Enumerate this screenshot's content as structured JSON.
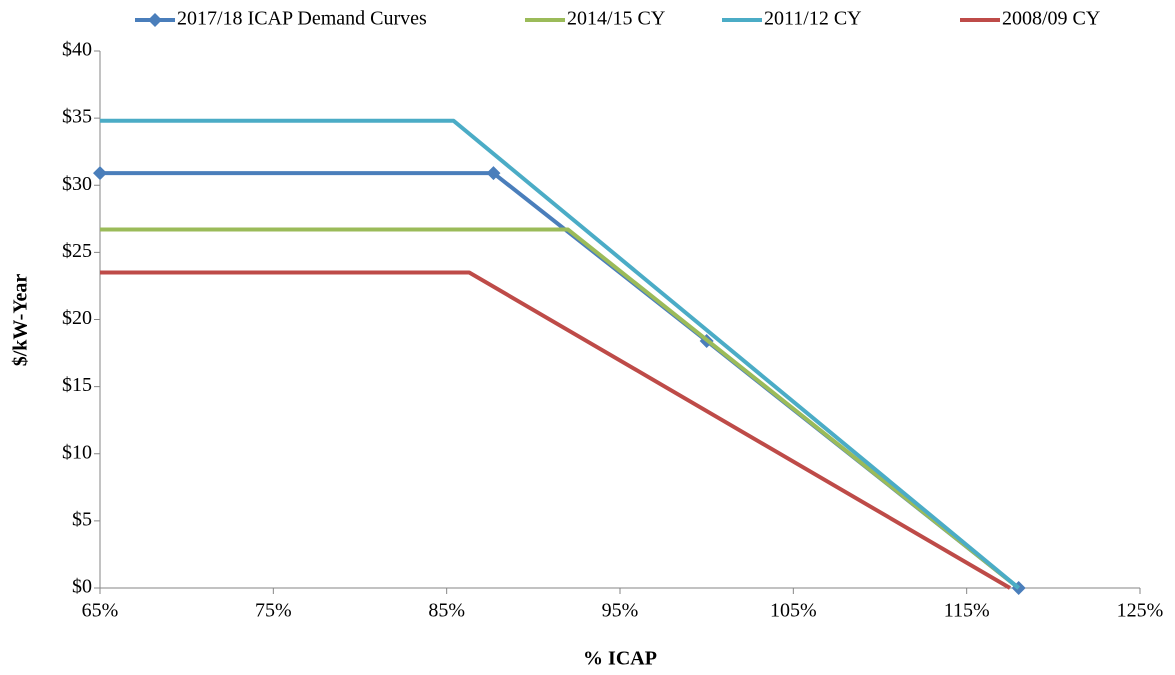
{
  "chart_data": {
    "type": "line",
    "x_label": "% ICAP",
    "y_label": "$/kW-Year",
    "xlim": [
      65,
      125
    ],
    "xticks": [
      {
        "value": 65,
        "label": "65%"
      },
      {
        "value": 75,
        "label": "75%"
      },
      {
        "value": 85,
        "label": "85%"
      },
      {
        "value": 95,
        "label": "95%"
      },
      {
        "value": 105,
        "label": "105%"
      },
      {
        "value": 115,
        "label": "115%"
      },
      {
        "value": 125,
        "label": "125%"
      }
    ],
    "ylim": [
      0,
      40
    ],
    "yticks": [
      {
        "value": 0,
        "label": "$0"
      },
      {
        "value": 5,
        "label": "$5"
      },
      {
        "value": 10,
        "label": "$10"
      },
      {
        "value": 15,
        "label": "$15"
      },
      {
        "value": 20,
        "label": "$20"
      },
      {
        "value": 25,
        "label": "$25"
      },
      {
        "value": 30,
        "label": "$30"
      },
      {
        "value": 35,
        "label": "$35"
      },
      {
        "value": 40,
        "label": "$40"
      }
    ],
    "grid": false,
    "legend": "top",
    "series": [
      {
        "name": "2017/18 ICAP Demand Curves",
        "color": "#4a7ebb",
        "marker": "diamond",
        "x": [
          65,
          87.7,
          100,
          118
        ],
        "values": [
          30.9,
          30.9,
          18.4,
          0
        ]
      },
      {
        "name": "2014/15 CY",
        "color": "#9bbb59",
        "x": [
          65,
          92,
          118
        ],
        "values": [
          26.7,
          26.7,
          0
        ]
      },
      {
        "name": "2011/12 CY",
        "color": "#4bacc6",
        "x": [
          65,
          85.4,
          118
        ],
        "values": [
          34.8,
          34.8,
          0
        ]
      },
      {
        "name": "2008/09 CY",
        "color": "#be4b48",
        "x": [
          65,
          86.3,
          117.5
        ],
        "values": [
          23.5,
          23.5,
          0
        ]
      }
    ]
  }
}
